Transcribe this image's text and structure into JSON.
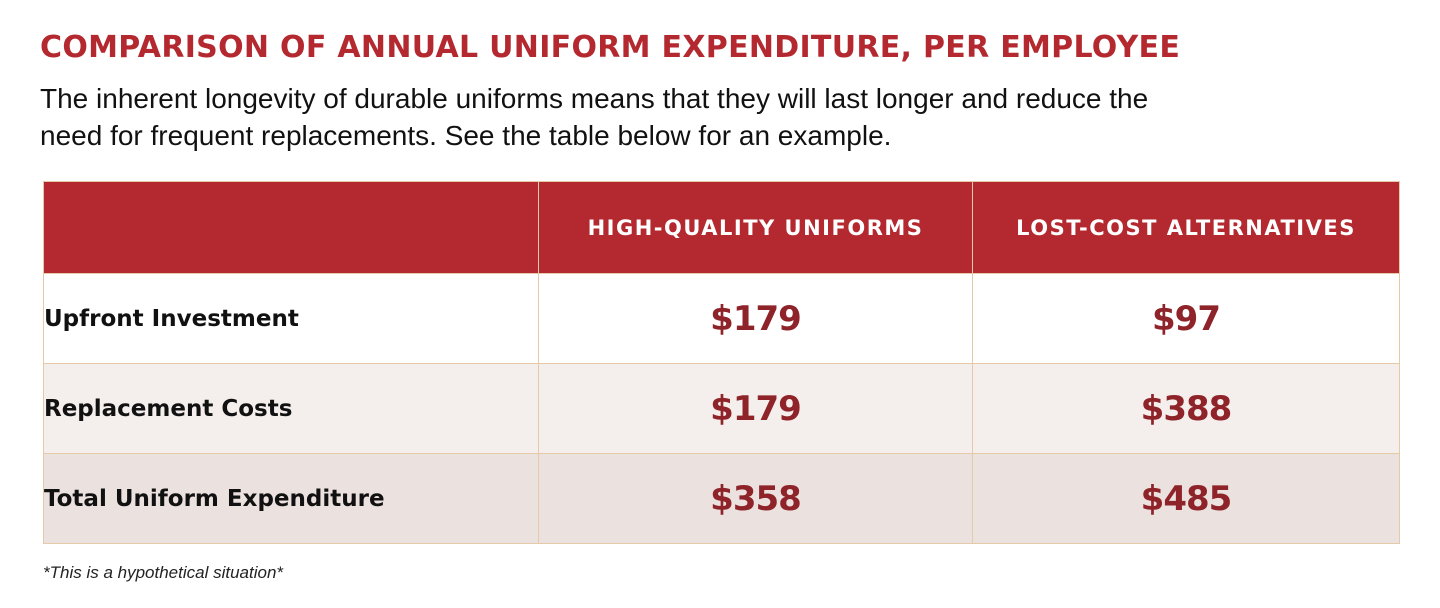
{
  "title": "COMPARISON OF ANNUAL UNIFORM EXPENDITURE, PER EMPLOYEE",
  "intro": "The inherent longevity of durable uniforms means that they will last longer and reduce the need for frequent replacements. See the table below for an example.",
  "table": {
    "headers": [
      "",
      "HIGH-QUALITY UNIFORMS",
      "LOST-COST ALTERNATIVES"
    ],
    "rows": [
      {
        "label": "Upfront Investment",
        "high_quality": "$179",
        "low_cost": "$97"
      },
      {
        "label": "Replacement Costs",
        "high_quality": "$179",
        "low_cost": "$388"
      },
      {
        "label": "Total Uniform Expenditure",
        "high_quality": "$358",
        "low_cost": "$485"
      }
    ]
  },
  "footnote": "*This is a hypothetical situation*",
  "colors": {
    "accent": "#b4292f",
    "value_text": "#8e2329",
    "row_bg": [
      "#ffffff",
      "#f4eeec",
      "#ebe1de"
    ],
    "border": "#e6c9a6"
  }
}
